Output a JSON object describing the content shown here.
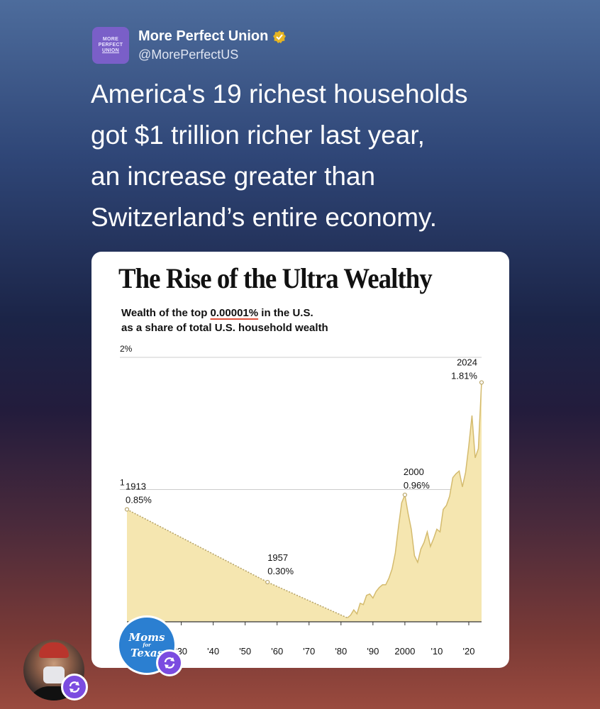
{
  "account": {
    "logo_lines": [
      "MORE",
      "PERFECT",
      "UNION"
    ],
    "display_name": "More Perfect Union",
    "handle": "@MorePerfectUS"
  },
  "tweet": {
    "text": "America's 19 richest households\ngot $1 trillion richer last year,\nan increase greater than\nSwitzerland’s entire economy."
  },
  "chart": {
    "subtitle_pre": "Wealth of the top ",
    "subtitle_highlight": "0.00001%",
    "subtitle_post": " in the U.S.",
    "subtitle_line2": "as a share of total U.S. household wealth"
  },
  "chart_data": {
    "type": "area",
    "title": "The Rise of the Ultra Wealthy",
    "fill_color": "#f5e6b0",
    "line_color": "#d4bb6e",
    "gridline_color": "#cccccc",
    "ylim": [
      0,
      2
    ],
    "xlim": [
      1913,
      2024
    ],
    "y_ticks": [
      {
        "value": 2,
        "label": "2%"
      },
      {
        "value": 1,
        "label": "1"
      }
    ],
    "x_ticks": [
      {
        "value": 1930,
        "label": "'30"
      },
      {
        "value": 1940,
        "label": "'40"
      },
      {
        "value": 1950,
        "label": "'50"
      },
      {
        "value": 1960,
        "label": "'60"
      },
      {
        "value": 1970,
        "label": "'70"
      },
      {
        "value": 1980,
        "label": "'80"
      },
      {
        "value": 1990,
        "label": "'90"
      },
      {
        "value": 2000,
        "label": "2000"
      },
      {
        "value": 2010,
        "label": "'10"
      },
      {
        "value": 2020,
        "label": "'20"
      }
    ],
    "dotted_segment": {
      "x": [
        1913,
        1957,
        1982
      ],
      "y": [
        0.85,
        0.3,
        0.03
      ]
    },
    "series": [
      {
        "x": [
          1913,
          1957,
          1982,
          1983,
          1984,
          1985,
          1986,
          1987,
          1988,
          1989,
          1990,
          1991,
          1992,
          1993,
          1994,
          1995,
          1996,
          1997,
          1998,
          1999,
          2000,
          2001,
          2002,
          2003,
          2004,
          2005,
          2006,
          2007,
          2008,
          2009,
          2010,
          2011,
          2012,
          2013,
          2014,
          2015,
          2016,
          2017,
          2018,
          2019,
          2020,
          2021,
          2022,
          2023,
          2024
        ],
        "y": [
          0.85,
          0.3,
          0.03,
          0.05,
          0.09,
          0.06,
          0.14,
          0.13,
          0.2,
          0.21,
          0.18,
          0.23,
          0.26,
          0.28,
          0.28,
          0.33,
          0.4,
          0.52,
          0.72,
          0.9,
          0.96,
          0.82,
          0.7,
          0.5,
          0.45,
          0.55,
          0.6,
          0.68,
          0.57,
          0.63,
          0.7,
          0.68,
          0.85,
          0.88,
          0.95,
          1.09,
          1.12,
          1.14,
          1.02,
          1.13,
          1.33,
          1.56,
          1.24,
          1.31,
          1.81
        ]
      }
    ],
    "annotations": [
      {
        "x": 1913,
        "y": 0.85,
        "year": "1913",
        "value": "0.85%"
      },
      {
        "x": 1957,
        "y": 0.3,
        "year": "1957",
        "value": "0.30%"
      },
      {
        "x": 2000,
        "y": 0.96,
        "year": "2000",
        "value": "0.96%"
      },
      {
        "x": 2024,
        "y": 1.81,
        "year": "2024",
        "value": "1.81%"
      }
    ]
  },
  "overlay": {
    "badge_big": "Moms",
    "badge_small": "for",
    "badge_big2": "Texas"
  }
}
